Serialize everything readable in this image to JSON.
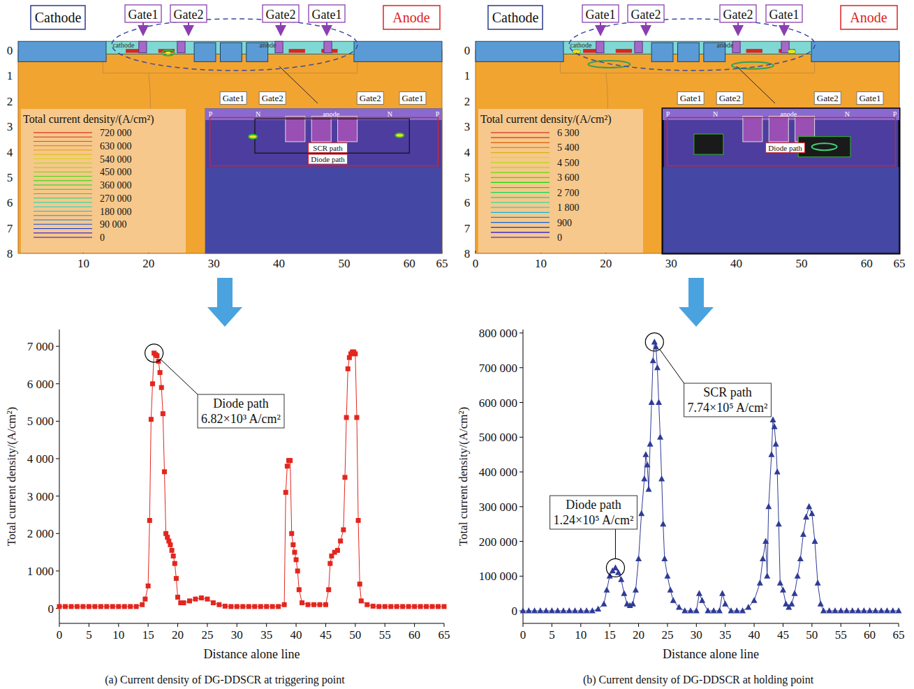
{
  "device_images": [
    {
      "cathode": "Cathode",
      "anode": "Anode",
      "gate_labels": [
        "Gate1",
        "Gate2",
        "Gate2",
        "Gate1"
      ],
      "region_labels": [
        "cathode",
        "anode"
      ],
      "xlim": [
        0,
        65
      ],
      "ylim": [
        0,
        8
      ],
      "xticks": [
        10,
        20,
        30,
        40,
        50,
        60,
        65
      ],
      "yticks": [
        0,
        1,
        2,
        3,
        4,
        5,
        6,
        7,
        8
      ],
      "legend_title": "Total current density/(A/cm²)",
      "legend_levels": [
        {
          "value": 720000,
          "label": "720 000"
        },
        {
          "value": 630000,
          "label": "630 000"
        },
        {
          "value": 540000,
          "label": "540 000"
        },
        {
          "value": 450000,
          "label": "450 000"
        },
        {
          "value": 360000,
          "label": "360 000"
        },
        {
          "value": 270000,
          "label": "270 000"
        },
        {
          "value": 180000,
          "label": "180 000"
        },
        {
          "value": 90000,
          "label": "90 000"
        },
        0
      ],
      "inset_gate_labels": [
        "Gate1",
        "Gate2",
        "Gate2",
        "Gate1"
      ],
      "inset_labels": [
        "P",
        "N",
        "anode",
        "N",
        "P"
      ],
      "path_labels": [
        "SCR path",
        "Diode path"
      ]
    },
    {
      "cathode": "Cathode",
      "anode": "Anode",
      "gate_labels": [
        "Gate1",
        "Gate2",
        "Gate2",
        "Gate1"
      ],
      "region_labels": [
        "cathode",
        "anode"
      ],
      "xlim": [
        0,
        65
      ],
      "ylim": [
        0,
        8
      ],
      "xticks": [
        0,
        10,
        20,
        30,
        40,
        50,
        60,
        65
      ],
      "yticks": [
        0,
        1,
        2,
        3,
        4,
        5,
        6,
        7,
        8
      ],
      "legend_title": "Total current density/(A/cm²)",
      "legend_levels": [
        {
          "value": 6300,
          "label": "6 300"
        },
        {
          "value": 5400,
          "label": "5 400"
        },
        {
          "value": 4500,
          "label": "4 500"
        },
        {
          "value": 3600,
          "label": "3 600"
        },
        {
          "value": 2700,
          "label": "2 700"
        },
        {
          "value": 1800,
          "label": "1 800"
        },
        900,
        0
      ],
      "inset_gate_labels": [
        "Gate1",
        "Gate2",
        "Gate2",
        "Gate1"
      ],
      "inset_labels": [
        "P",
        "N",
        "anode",
        "N",
        "P"
      ],
      "path_labels": [
        "Diode path"
      ]
    }
  ],
  "chart_data": [
    {
      "type": "line",
      "caption": "(a) Current density of DG-DDSCR at triggering point",
      "x_label": "Distance alone line",
      "y_label": "Total current density/(A/cm²)",
      "color": "#e3261e",
      "marker": "square",
      "line_style": "solid",
      "xlim": [
        0,
        65
      ],
      "ylim": [
        -400,
        7450
      ],
      "xticks": [
        0,
        5,
        10,
        15,
        20,
        25,
        30,
        35,
        40,
        45,
        50,
        55,
        60,
        65
      ],
      "yticks": [
        0,
        {
          "value": 1000,
          "label": "1 000"
        },
        {
          "value": 2000,
          "label": "2 000"
        },
        {
          "value": 3000,
          "label": "3 000"
        },
        {
          "value": 4000,
          "label": "4 000"
        },
        {
          "value": 5000,
          "label": "5 000"
        },
        {
          "value": 6000,
          "label": "6 000"
        },
        {
          "value": 7000,
          "label": "7 000"
        }
      ],
      "x": [
        0,
        1,
        2,
        3,
        4,
        5,
        6,
        7,
        8,
        9,
        10,
        11,
        12,
        13,
        14,
        14.5,
        15,
        15.25,
        15.5,
        15.75,
        16,
        16.25,
        16.5,
        16.75,
        17,
        17.25,
        17.5,
        17.75,
        18,
        18.25,
        18.5,
        18.75,
        19,
        19.25,
        19.5,
        19.75,
        20,
        20.5,
        21,
        22,
        23,
        24,
        25,
        26,
        27,
        28,
        29,
        30,
        31,
        32,
        33,
        34,
        35,
        36,
        37,
        38,
        38.25,
        38.5,
        38.75,
        39,
        39.25,
        39.5,
        39.75,
        40,
        40.25,
        40.5,
        41,
        42,
        43,
        44,
        45,
        45.5,
        45.75,
        46,
        46.5,
        47,
        47.5,
        48,
        48.25,
        48.5,
        48.75,
        49,
        49.25,
        49.5,
        49.75,
        50,
        50.25,
        50.5,
        50.75,
        51,
        52,
        53,
        54,
        55,
        56,
        57,
        58,
        59,
        60,
        61,
        62,
        63,
        64,
        65
      ],
      "values": [
        50,
        50,
        50,
        50,
        50,
        50,
        50,
        50,
        50,
        50,
        50,
        50,
        50,
        50,
        100,
        250,
        600,
        2350,
        5050,
        6000,
        6820,
        6780,
        6750,
        6600,
        6300,
        5900,
        5200,
        3650,
        2000,
        1900,
        1800,
        1700,
        1550,
        1400,
        1200,
        800,
        300,
        150,
        150,
        200,
        250,
        280,
        250,
        150,
        100,
        60,
        50,
        50,
        50,
        50,
        50,
        50,
        50,
        50,
        50,
        100,
        3100,
        3800,
        3950,
        3950,
        2000,
        1700,
        1500,
        1300,
        1000,
        500,
        150,
        100,
        100,
        100,
        100,
        500,
        1200,
        1400,
        1500,
        1550,
        1800,
        2100,
        3500,
        5100,
        6400,
        6700,
        6800,
        6850,
        6850,
        6800,
        5100,
        2350,
        650,
        200,
        100,
        60,
        50,
        50,
        50,
        50,
        50,
        50,
        50,
        50,
        50,
        50,
        50,
        50
      ],
      "annotations": [
        {
          "text": "Diode path",
          "value_text": "6.82×10³ A/cm²",
          "x": 16,
          "y": 6820
        }
      ]
    },
    {
      "type": "line",
      "caption": "(b) Current density of DG-DDSCR at holding point",
      "x_label": "Distance alone line",
      "y_label": "Total current density/(A/cm²)",
      "color": "#2e3b96",
      "marker": "triangle",
      "line_style": "solid",
      "xlim": [
        0,
        65
      ],
      "ylim": [
        -36000,
        810000
      ],
      "xticks": [
        0,
        5,
        10,
        15,
        20,
        25,
        30,
        35,
        40,
        45,
        50,
        55,
        60,
        65
      ],
      "yticks": [
        0,
        {
          "value": 100000,
          "label": "100 000"
        },
        {
          "value": 200000,
          "label": "200 000"
        },
        {
          "value": 300000,
          "label": "300 000"
        },
        {
          "value": 400000,
          "label": "400 000"
        },
        {
          "value": 500000,
          "label": "500 000"
        },
        {
          "value": 600000,
          "label": "600 000"
        },
        {
          "value": 700000,
          "label": "700 000"
        },
        {
          "value": 800000,
          "label": "800 000"
        }
      ],
      "x": [
        0,
        1,
        2,
        3,
        4,
        5,
        6,
        7,
        8,
        9,
        10,
        11,
        12,
        13,
        14,
        14.5,
        15,
        15.5,
        16,
        16.5,
        17,
        17.5,
        18,
        18.5,
        19,
        19.5,
        20,
        20.5,
        21,
        21.25,
        21.5,
        21.75,
        22,
        22.25,
        22.5,
        22.75,
        23,
        23.25,
        23.5,
        23.75,
        24,
        24.25,
        24.5,
        25,
        25.5,
        26,
        27,
        28,
        29,
        30,
        30.5,
        31,
        32,
        33,
        34,
        34.5,
        35,
        36,
        37,
        38,
        39,
        40,
        41,
        41.5,
        42,
        42.25,
        42.5,
        43,
        43.25,
        43.5,
        43.75,
        44,
        44.25,
        44.5,
        45,
        45.5,
        46,
        46.5,
        47,
        47.5,
        48,
        48.5,
        49,
        49.5,
        50,
        50.5,
        51,
        51.5,
        52,
        53,
        54,
        55,
        56,
        57,
        58,
        59,
        60,
        61,
        62,
        63,
        64,
        65
      ],
      "values": [
        0,
        0,
        0,
        0,
        0,
        0,
        0,
        0,
        0,
        0,
        0,
        0,
        0,
        5000,
        20000,
        60000,
        100000,
        115000,
        124000,
        110000,
        90000,
        50000,
        20000,
        15000,
        20000,
        60000,
        150000,
        280000,
        380000,
        450000,
        420000,
        350000,
        480000,
        600000,
        720000,
        774000,
        760000,
        700000,
        600000,
        500000,
        380000,
        250000,
        150000,
        100000,
        60000,
        30000,
        10000,
        0,
        0,
        0,
        50000,
        30000,
        0,
        0,
        0,
        50000,
        20000,
        0,
        0,
        0,
        10000,
        30000,
        80000,
        150000,
        200000,
        100000,
        300000,
        450000,
        550000,
        530000,
        480000,
        400000,
        250000,
        80000,
        60000,
        20000,
        10000,
        20000,
        50000,
        100000,
        150000,
        220000,
        270000,
        300000,
        280000,
        200000,
        80000,
        20000,
        0,
        0,
        0,
        0,
        0,
        0,
        0,
        0,
        0,
        0,
        0,
        0,
        0,
        0
      ],
      "annotations": [
        {
          "text": "Diode path",
          "value_text": "1.24×10⁵ A/cm²",
          "x": 16,
          "y": 124000
        },
        {
          "text": "SCR path",
          "value_text": "7.74×10⁵ A/cm²",
          "x": 22.75,
          "y": 774000
        }
      ]
    }
  ]
}
